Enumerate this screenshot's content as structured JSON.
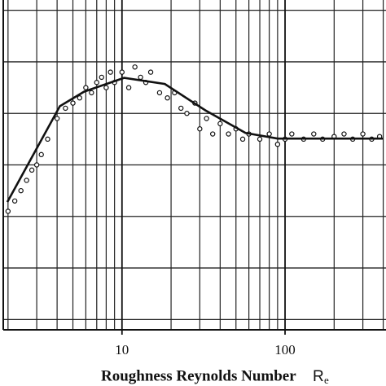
{
  "chart_data": {
    "type": "scatter",
    "xlabel": "Roughness Reynolds Number",
    "xlabel_symbol": "R",
    "xlabel_subscript": "e",
    "log_x": true,
    "grid": true,
    "xlim": [
      1.87,
      416
    ],
    "xticks": [
      10,
      100
    ],
    "xminor_ticks": [
      2,
      3,
      4,
      5,
      6,
      7,
      8,
      9,
      20,
      30,
      40,
      50,
      60,
      70,
      80,
      90,
      200,
      300,
      400
    ],
    "ylim": [
      0.8,
      7.2
    ],
    "yticks": [
      1,
      2,
      3,
      4,
      5,
      6,
      7
    ],
    "series": [
      {
        "kind": "points",
        "color": "#111",
        "x": [
          2.0,
          2.2,
          2.4,
          2.6,
          2.8,
          3.0,
          3.2,
          3.5,
          4.0,
          4.5,
          5.0,
          5.5,
          6.0,
          6.5,
          7.0,
          7.5,
          8.0,
          8.5,
          9.0,
          10,
          11,
          12,
          13,
          14,
          15,
          17,
          19,
          21,
          23,
          25,
          28,
          30,
          33,
          36,
          40,
          45,
          50,
          55,
          60,
          70,
          80,
          90,
          100,
          110,
          130,
          150,
          170,
          200,
          230,
          260,
          300,
          340,
          380
        ],
        "values": [
          3.1,
          3.3,
          3.5,
          3.7,
          3.9,
          4.0,
          4.2,
          4.5,
          4.9,
          5.1,
          5.2,
          5.3,
          5.5,
          5.4,
          5.6,
          5.7,
          5.5,
          5.8,
          5.6,
          5.8,
          5.5,
          5.9,
          5.7,
          5.6,
          5.8,
          5.4,
          5.3,
          5.4,
          5.1,
          5.0,
          5.2,
          4.7,
          4.9,
          4.6,
          4.8,
          4.6,
          4.7,
          4.5,
          4.6,
          4.5,
          4.6,
          4.4,
          4.5,
          4.6,
          4.5,
          4.6,
          4.5,
          4.55,
          4.6,
          4.5,
          4.6,
          4.5,
          4.55
        ]
      },
      {
        "kind": "curve",
        "color": "#111",
        "x": [
          1.98,
          4.16,
          5.85,
          10.3,
          18.3,
          32.4,
          57.2,
          90.2,
          398
        ],
        "values": [
          3.28,
          5.14,
          5.42,
          5.69,
          5.57,
          5.06,
          4.62,
          4.51,
          4.51
        ]
      }
    ]
  }
}
